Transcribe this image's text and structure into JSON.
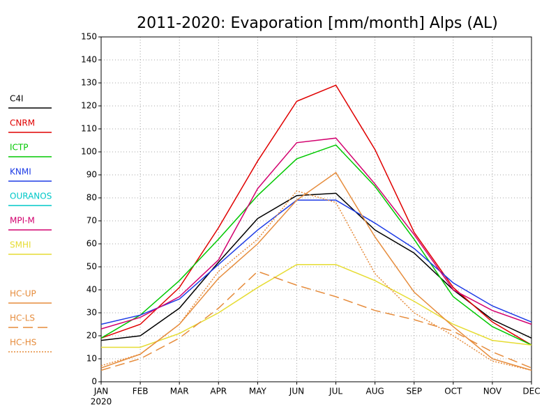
{
  "chart_data": {
    "type": "line",
    "title": "2011-2020: Evaporation [mm/month] Alps (AL)",
    "categories": [
      "JAN",
      "FEB",
      "MAR",
      "APR",
      "MAY",
      "JUN",
      "JUL",
      "AUG",
      "SEP",
      "OCT",
      "NOV",
      "DEC"
    ],
    "x_sublabel": "2020",
    "ylim": [
      0,
      150
    ],
    "yticks": [
      0,
      10,
      20,
      30,
      40,
      50,
      60,
      70,
      80,
      90,
      100,
      110,
      120,
      130,
      140,
      150
    ],
    "grid": true,
    "legend": "left",
    "series": [
      {
        "name": "C4I",
        "color": "#000000",
        "dash": "solid",
        "values": [
          18,
          20,
          32,
          52,
          71,
          81,
          82,
          66,
          56,
          40,
          27,
          19
        ]
      },
      {
        "name": "CNRM",
        "color": "#e00000",
        "dash": "solid",
        "values": [
          19,
          25,
          41,
          67,
          96,
          122,
          129,
          101,
          65,
          41,
          26,
          16
        ]
      },
      {
        "name": "ICTP",
        "color": "#00c800",
        "dash": "solid",
        "values": [
          19,
          29,
          44,
          62,
          81,
          97,
          103,
          85,
          62,
          37,
          24,
          16
        ]
      },
      {
        "name": "KNMI",
        "color": "#1e3ce6",
        "dash": "solid",
        "values": [
          25,
          29,
          36,
          51,
          66,
          79,
          79,
          69,
          58,
          43,
          33,
          26
        ]
      },
      {
        "name": "OURANOS",
        "color": "#00c8c8",
        "dash": "solid",
        "values": [
          null,
          null,
          null,
          null,
          null,
          null,
          null,
          null,
          null,
          null,
          null,
          null
        ]
      },
      {
        "name": "MPI-M",
        "color": "#d2006e",
        "dash": "solid",
        "values": [
          23,
          28,
          37,
          53,
          84,
          104,
          106,
          86,
          64,
          40,
          31,
          25
        ]
      },
      {
        "name": "SMHI",
        "color": "#e6dc32",
        "dash": "solid",
        "values": [
          15,
          15,
          21,
          30,
          41,
          51,
          51,
          44,
          35,
          25,
          18,
          16
        ]
      },
      {
        "name": "HC-UP",
        "color": "#e68c3c",
        "dash": "solid",
        "values": [
          6,
          12,
          25,
          45,
          60,
          79,
          91,
          63,
          39,
          24,
          10,
          5
        ]
      },
      {
        "name": "HC-LS",
        "color": "#e68c3c",
        "dash": "dashed",
        "values": [
          5,
          10,
          19,
          32,
          48,
          42,
          37,
          31,
          27,
          22,
          13,
          6
        ]
      },
      {
        "name": "HC-HS",
        "color": "#e68c3c",
        "dash": "dotted",
        "values": [
          7,
          12,
          25,
          48,
          62,
          83,
          78,
          47,
          30,
          20,
          9,
          5
        ]
      }
    ]
  }
}
